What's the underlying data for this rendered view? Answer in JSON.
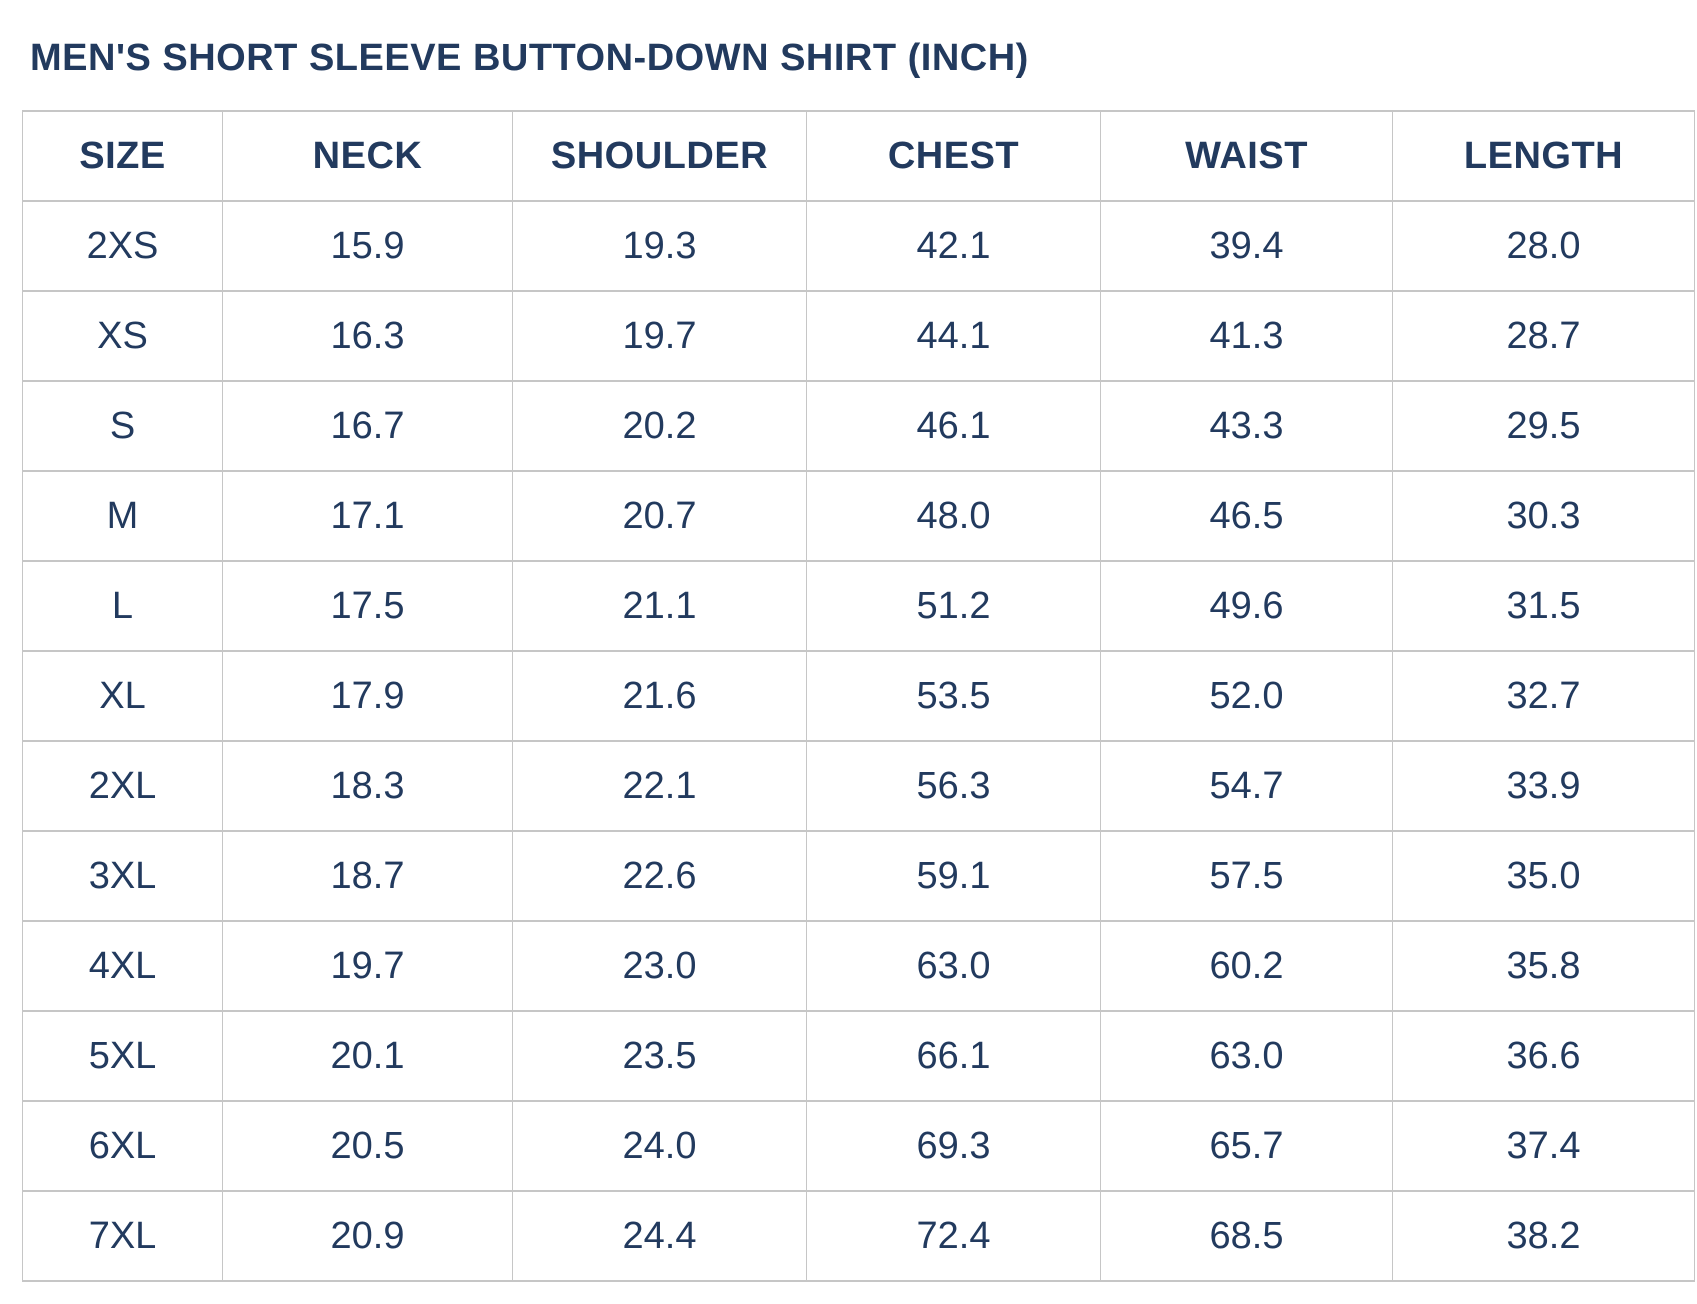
{
  "page": {
    "title": "MEN'S SHORT SLEEVE BUTTON-DOWN SHIRT (INCH)"
  },
  "colors": {
    "text_navy": "#223a5e",
    "border_gray": "#c6c6c6",
    "background": "#ffffff"
  },
  "size_chart": {
    "columns": [
      "SIZE",
      "NECK",
      "SHOULDER",
      "CHEST",
      "WAIST",
      "LENGTH"
    ],
    "rows": [
      [
        "2XS",
        "15.9",
        "19.3",
        "42.1",
        "39.4",
        "28.0"
      ],
      [
        "XS",
        "16.3",
        "19.7",
        "44.1",
        "41.3",
        "28.7"
      ],
      [
        "S",
        "16.7",
        "20.2",
        "46.1",
        "43.3",
        "29.5"
      ],
      [
        "M",
        "17.1",
        "20.7",
        "48.0",
        "46.5",
        "30.3"
      ],
      [
        "L",
        "17.5",
        "21.1",
        "51.2",
        "49.6",
        "31.5"
      ],
      [
        "XL",
        "17.9",
        "21.6",
        "53.5",
        "52.0",
        "32.7"
      ],
      [
        "2XL",
        "18.3",
        "22.1",
        "56.3",
        "54.7",
        "33.9"
      ],
      [
        "3XL",
        "18.7",
        "22.6",
        "59.1",
        "57.5",
        "35.0"
      ],
      [
        "4XL",
        "19.7",
        "23.0",
        "63.0",
        "60.2",
        "35.8"
      ],
      [
        "5XL",
        "20.1",
        "23.5",
        "66.1",
        "63.0",
        "36.6"
      ],
      [
        "6XL",
        "20.5",
        "24.0",
        "69.3",
        "65.7",
        "37.4"
      ],
      [
        "7XL",
        "20.9",
        "24.4",
        "72.4",
        "68.5",
        "38.2"
      ]
    ]
  }
}
